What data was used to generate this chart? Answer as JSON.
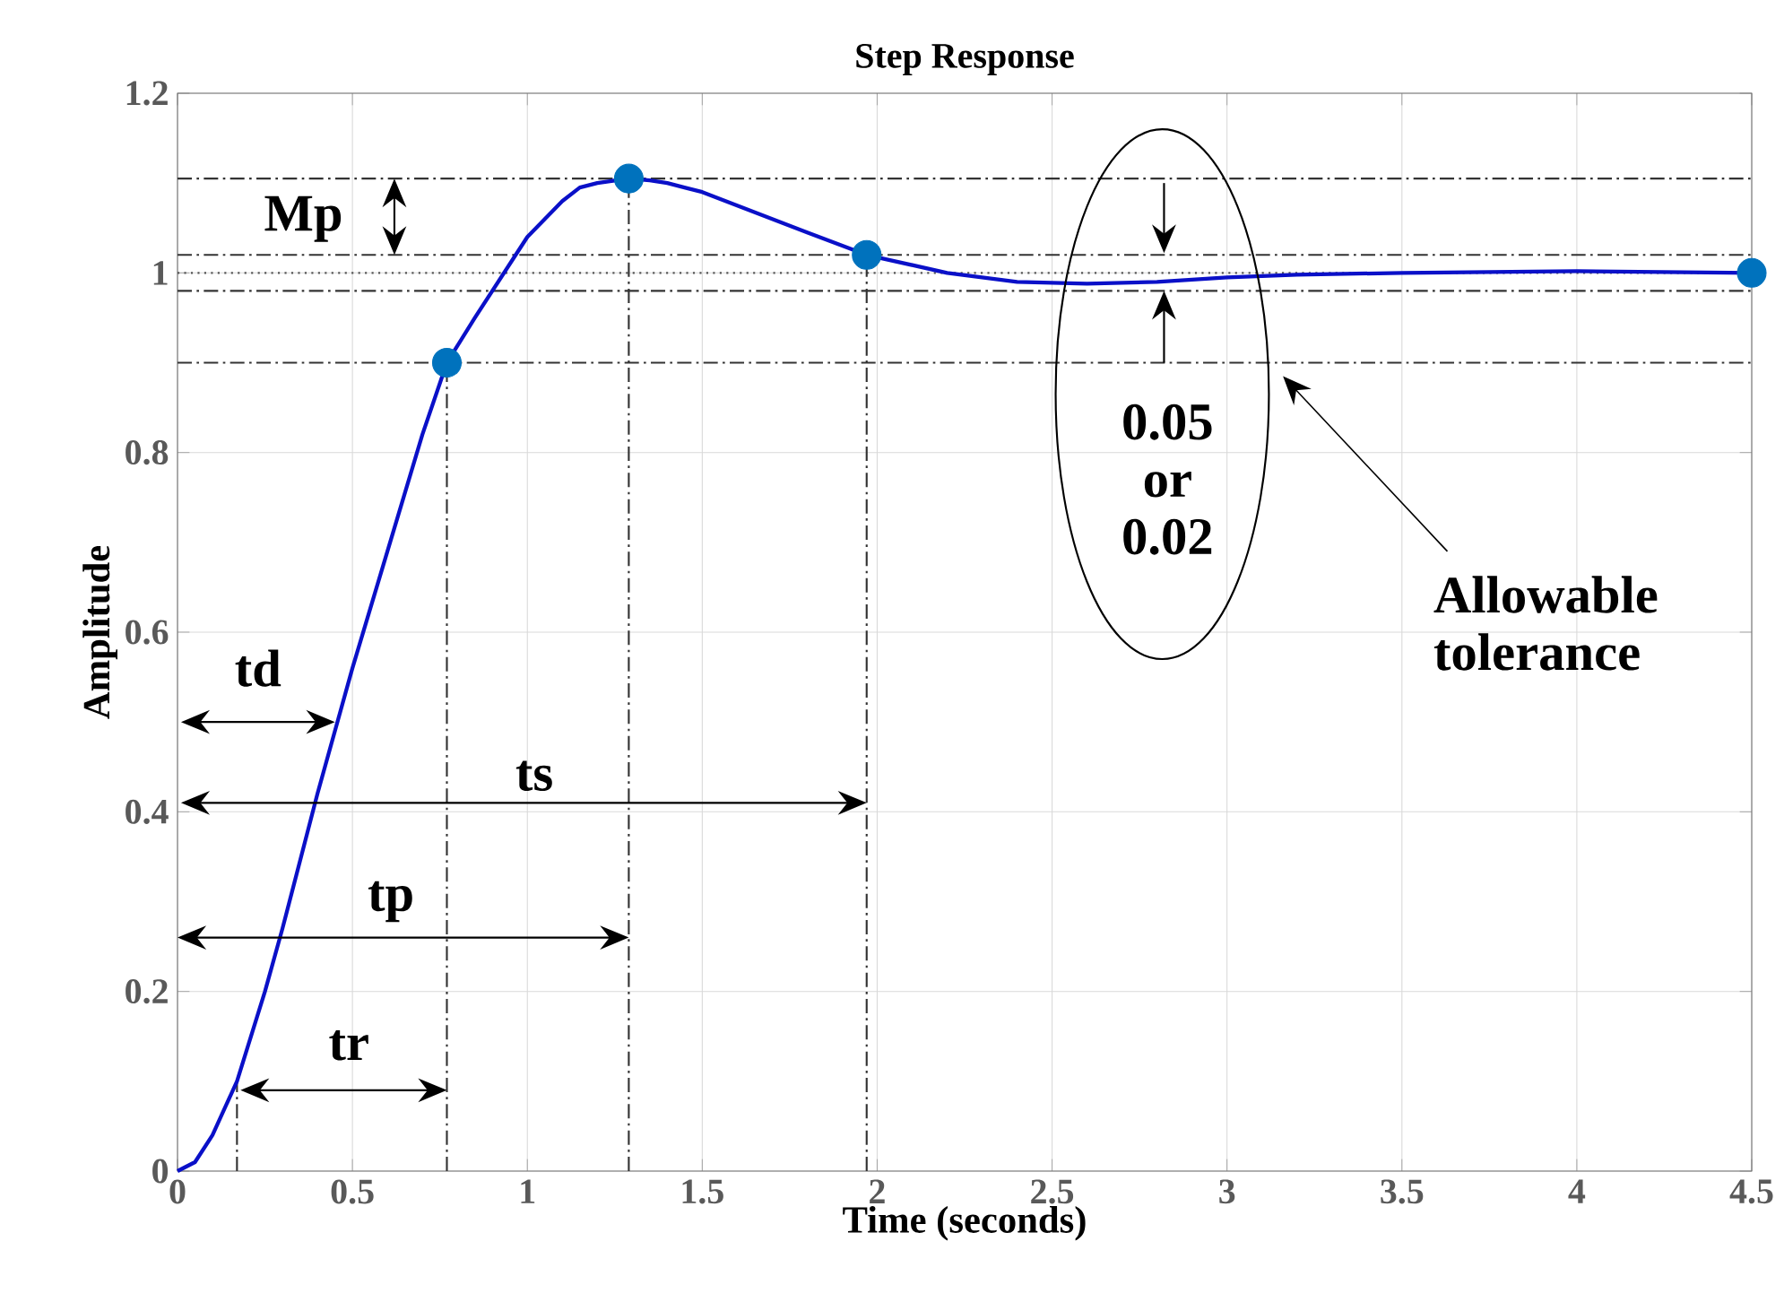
{
  "chart_data": {
    "type": "line",
    "title": "Step Response",
    "xlabel": "Time (seconds)",
    "ylabel": "Amplitude",
    "xlim": [
      0,
      4.5
    ],
    "ylim": [
      0,
      1.2
    ],
    "xticks": [
      0,
      0.5,
      1,
      1.5,
      2,
      2.5,
      3,
      3.5,
      4,
      4.5
    ],
    "yticks": [
      0,
      0.2,
      0.4,
      0.6,
      0.8,
      1,
      1.2
    ],
    "grid": true,
    "series": [
      {
        "color": "#0a10c8",
        "line_style": "solid",
        "marker": "none",
        "x": [
          0,
          0.05,
          0.1,
          0.17,
          0.25,
          0.3,
          0.4,
          0.5,
          0.6,
          0.7,
          0.77,
          0.85,
          0.9,
          0.95,
          1.0,
          1.05,
          1.1,
          1.15,
          1.2,
          1.29,
          1.35,
          1.4,
          1.5,
          1.6,
          1.8,
          1.97,
          2.2,
          2.4,
          2.6,
          2.8,
          3.0,
          3.2,
          3.5,
          4.0,
          4.5
        ],
        "values": [
          0,
          0.01,
          0.04,
          0.1,
          0.2,
          0.27,
          0.42,
          0.56,
          0.69,
          0.82,
          0.9,
          0.95,
          0.98,
          1.01,
          1.04,
          1.06,
          1.08,
          1.095,
          1.1,
          1.105,
          1.103,
          1.1,
          1.09,
          1.075,
          1.045,
          1.02,
          1.0,
          0.99,
          0.988,
          0.99,
          0.995,
          0.998,
          1.0,
          1.002,
          1.0
        ]
      },
      {
        "type": "scatter",
        "color": "#0072bd",
        "marker": "circle",
        "x": [
          0.77,
          1.29,
          1.97,
          4.5
        ],
        "values": [
          0.9,
          1.105,
          1.02,
          1.0
        ]
      }
    ],
    "ref_lines": [
      {
        "axis": "y",
        "value": 1.105,
        "line_style": "dashed",
        "color": "#333333"
      },
      {
        "axis": "y",
        "value": 1.02,
        "line_style": "dashed",
        "color": "#333333"
      },
      {
        "axis": "y",
        "value": 1.0,
        "line_style": "dotted",
        "color": "#555555"
      },
      {
        "axis": "y",
        "value": 0.98,
        "line_style": "dashed",
        "color": "#333333"
      },
      {
        "axis": "y",
        "value": 0.9,
        "line_style": "dashed",
        "color": "#333333"
      },
      {
        "axis": "x",
        "value": 0.17,
        "line_style": "dashed",
        "color": "#333333"
      },
      {
        "axis": "x",
        "value": 0.77,
        "line_style": "dashed",
        "color": "#333333"
      },
      {
        "axis": "x",
        "value": 1.29,
        "line_style": "dashed",
        "color": "#333333"
      },
      {
        "axis": "x",
        "value": 1.97,
        "line_style": "dashed",
        "color": "#333333"
      }
    ],
    "annotations": [
      "Mp",
      "td",
      "ts",
      "tp",
      {
        "text": "tr",
        "x": 0.77,
        "y": 0.09
      },
      {
        "text": "0.05 or 0.02",
        "x": 2.82,
        "y": 0.98
      },
      "Allowable tolerance"
    ]
  }
}
